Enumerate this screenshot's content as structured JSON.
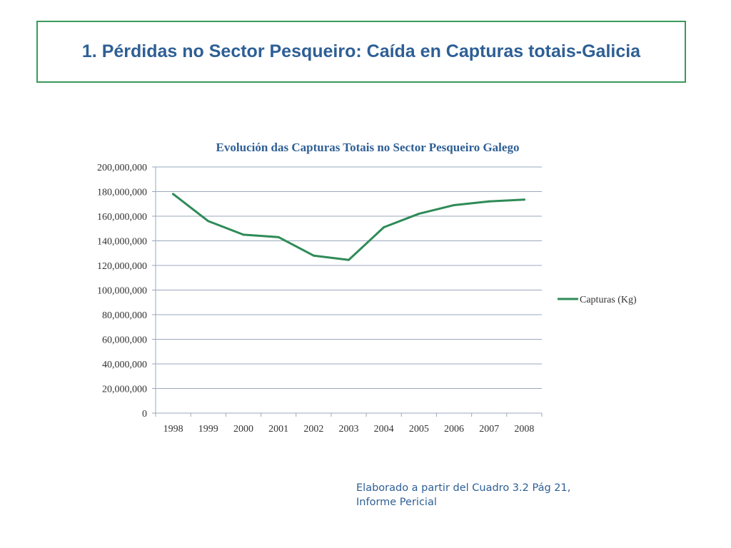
{
  "slide": {
    "title": "1. Pérdidas no Sector Pesqueiro: Caída en Capturas totais-Galicia",
    "source_line1": "Elaborado a partir del Cuadro 3.2 Pág 21,",
    "source_line2": "Informe Pericial"
  },
  "colors": {
    "title": "#2e5f95",
    "border": "#3a9a5b",
    "line": "#2e8b57",
    "grid": "#9aa8bd"
  },
  "chart_data": {
    "type": "line",
    "title": "Evolución das Capturas Totais no Sector Pesqueiro Galego",
    "xlabel": "",
    "ylabel": "",
    "categories": [
      "1998",
      "1999",
      "2000",
      "2001",
      "2002",
      "2003",
      "2004",
      "2005",
      "2006",
      "2007",
      "2008"
    ],
    "series": [
      {
        "name": "Capturas (Kg)",
        "values": [
          178000000,
          156000000,
          145000000,
          143000000,
          128000000,
          124500000,
          151000000,
          162000000,
          169000000,
          172000000,
          173500000
        ]
      }
    ],
    "ylim": [
      0,
      200000000
    ],
    "yticks": [
      "0",
      "20,000,000",
      "40,000,000",
      "60,000,000",
      "80,000,000",
      "100,000,000",
      "120,000,000",
      "140,000,000",
      "160,000,000",
      "180,000,000",
      "200,000,000"
    ],
    "grid": true,
    "legend": "right"
  }
}
